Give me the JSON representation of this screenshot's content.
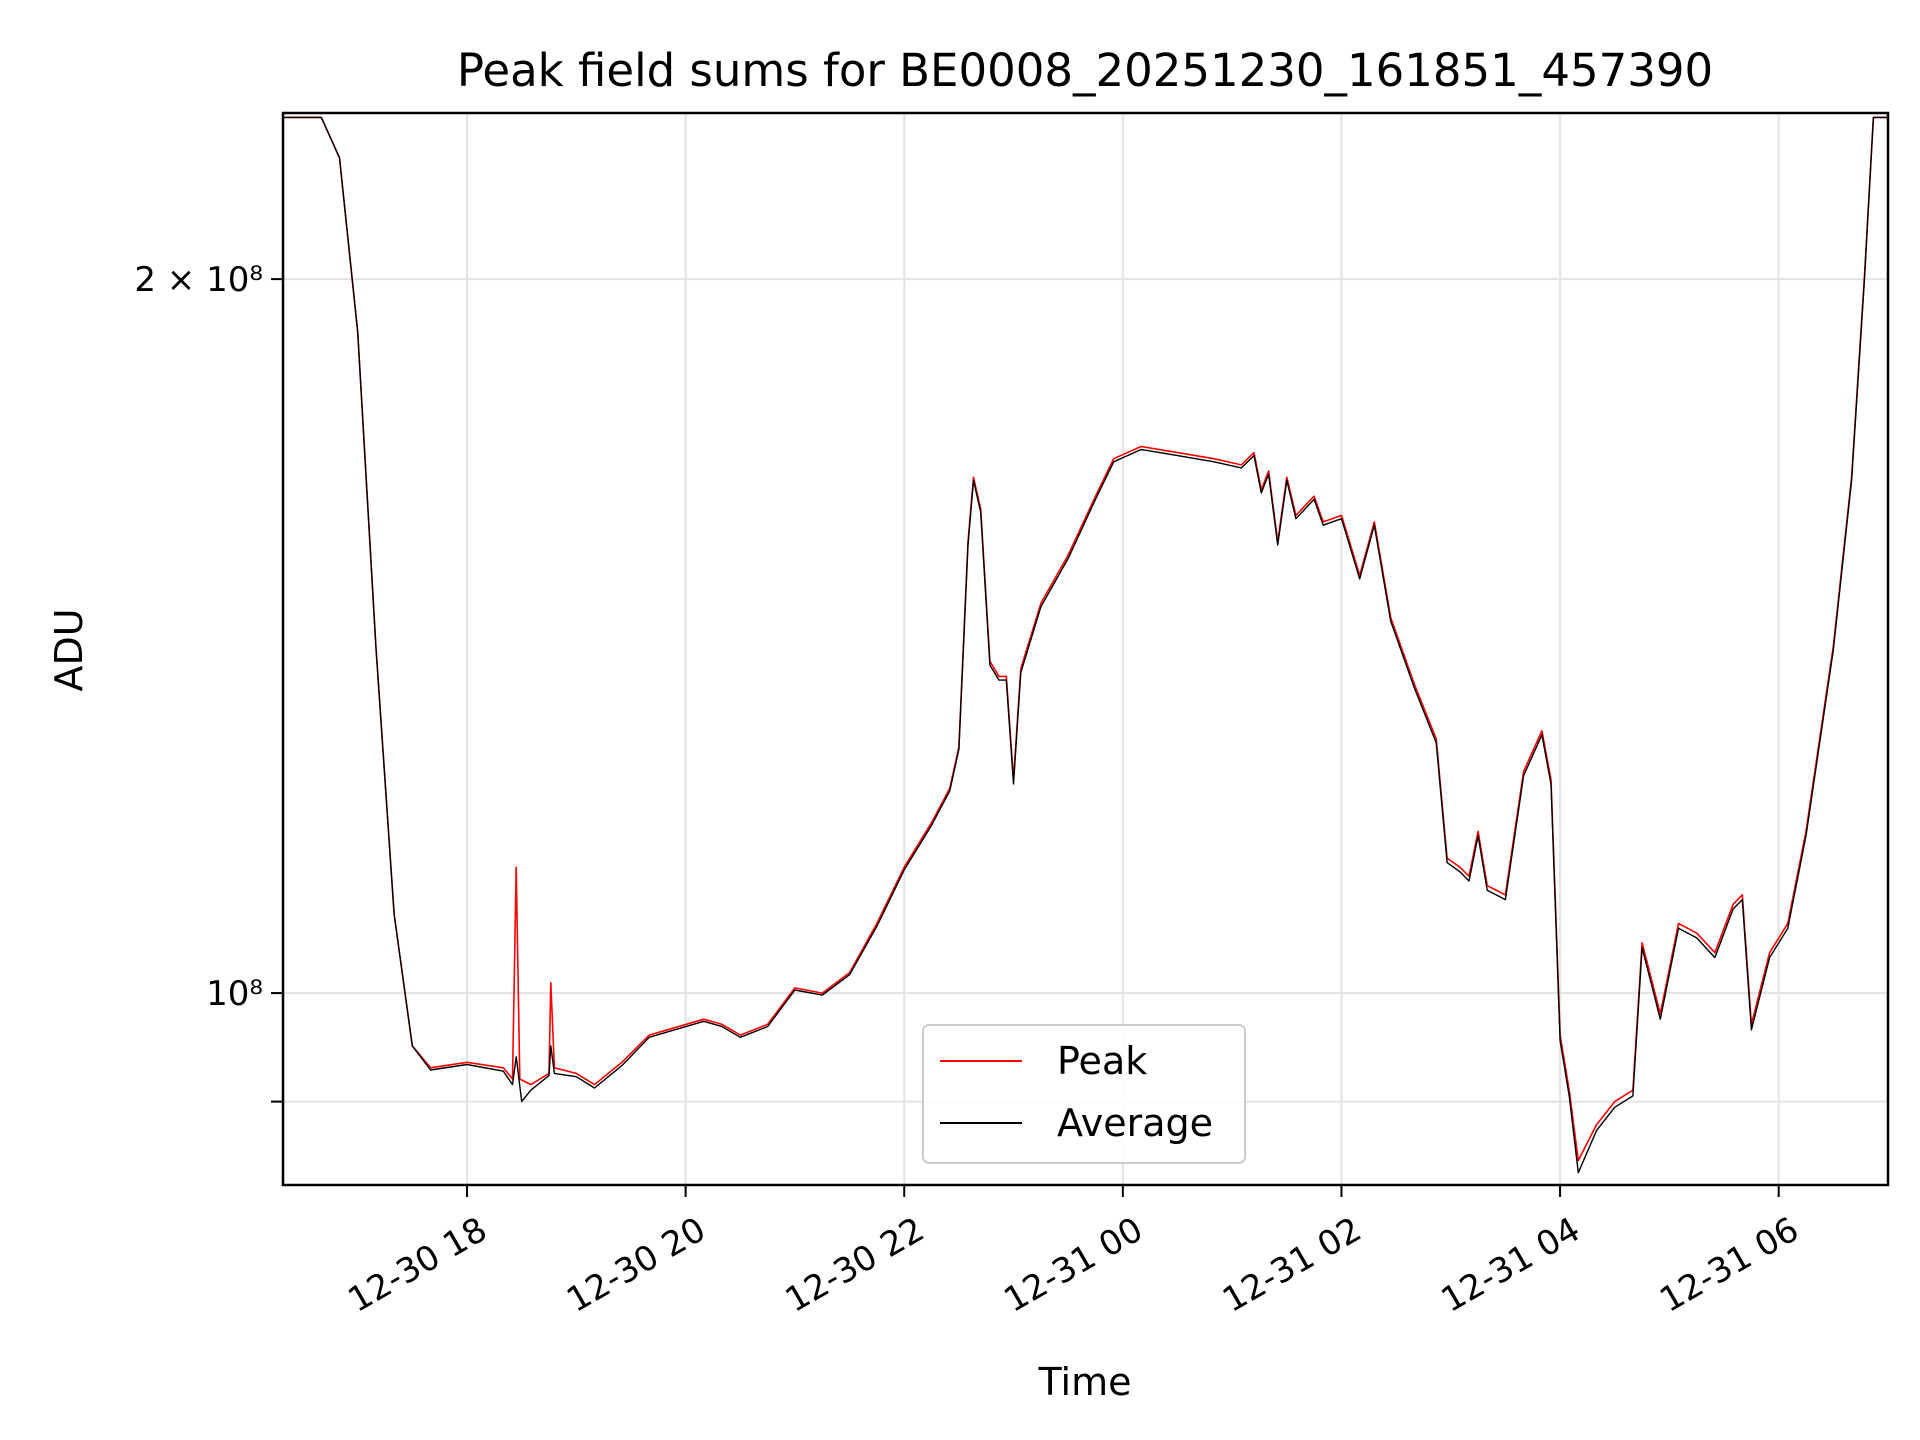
{
  "chart_data": {
    "type": "line",
    "title": "Peak field sums for BE0008_20251230_161851_457390",
    "xlabel": "Time",
    "ylabel": "ADU",
    "yscale": "log",
    "grid": true,
    "legend_placement": "lower center",
    "xlim": [
      "2025-12-30 16:19",
      "2025-12-31 07:00"
    ],
    "ylim": [
      83000000,
      235000000
    ],
    "x_ticks": [
      {
        "value": "2025-12-30 18:00",
        "label": "12-30 18"
      },
      {
        "value": "2025-12-30 20:00",
        "label": "12-30 20"
      },
      {
        "value": "2025-12-30 22:00",
        "label": "12-30 22"
      },
      {
        "value": "2025-12-31 00:00",
        "label": "12-31 00"
      },
      {
        "value": "2025-12-31 02:00",
        "label": "12-31 02"
      },
      {
        "value": "2025-12-31 04:00",
        "label": "12-31 04"
      },
      {
        "value": "2025-12-31 06:00",
        "label": "12-31 06"
      }
    ],
    "y_ticks": [
      {
        "value": 200000000,
        "label": "2 × 10⁸"
      },
      {
        "value": 100000000,
        "label": "10⁸"
      },
      {
        "value": 90000000,
        "label": ""
      }
    ],
    "series": [
      {
        "name": "Peak",
        "color": "#ff0000",
        "points": [
          [
            "2025-12-30 16:19",
            234000000
          ],
          [
            "2025-12-30 16:40",
            234000000
          ],
          [
            "2025-12-30 16:50",
            225000000
          ],
          [
            "2025-12-30 17:00",
            190000000
          ],
          [
            "2025-12-30 17:10",
            140000000
          ],
          [
            "2025-12-30 17:20",
            108000000
          ],
          [
            "2025-12-30 17:30",
            95000000
          ],
          [
            "2025-12-30 17:40",
            93000000
          ],
          [
            "2025-12-30 18:00",
            93500000
          ],
          [
            "2025-12-30 18:20",
            93000000
          ],
          [
            "2025-12-30 18:25",
            92000000
          ],
          [
            "2025-12-30 18:27",
            113000000
          ],
          [
            "2025-12-30 18:29",
            92000000
          ],
          [
            "2025-12-30 18:35",
            91500000
          ],
          [
            "2025-12-30 18:45",
            92500000
          ],
          [
            "2025-12-30 18:46",
            101000000
          ],
          [
            "2025-12-30 18:48",
            93000000
          ],
          [
            "2025-12-30 19:00",
            92500000
          ],
          [
            "2025-12-30 19:10",
            91500000
          ],
          [
            "2025-12-30 19:25",
            93500000
          ],
          [
            "2025-12-30 19:40",
            96000000
          ],
          [
            "2025-12-30 19:50",
            96500000
          ],
          [
            "2025-12-30 20:10",
            97500000
          ],
          [
            "2025-12-30 20:20",
            97000000
          ],
          [
            "2025-12-30 20:30",
            96000000
          ],
          [
            "2025-12-30 20:45",
            97000000
          ],
          [
            "2025-12-30 21:00",
            100500000
          ],
          [
            "2025-12-30 21:15",
            100000000
          ],
          [
            "2025-12-30 21:30",
            102000000
          ],
          [
            "2025-12-30 21:45",
            107000000
          ],
          [
            "2025-12-30 22:00",
            113000000
          ],
          [
            "2025-12-30 22:15",
            118000000
          ],
          [
            "2025-12-30 22:25",
            122000000
          ],
          [
            "2025-12-30 22:30",
            127000000
          ],
          [
            "2025-12-30 22:35",
            155000000
          ],
          [
            "2025-12-30 22:38",
            165000000
          ],
          [
            "2025-12-30 22:42",
            160000000
          ],
          [
            "2025-12-30 22:47",
            138000000
          ],
          [
            "2025-12-30 22:52",
            136000000
          ],
          [
            "2025-12-30 22:56",
            136000000
          ],
          [
            "2025-12-30 23:00",
            123000000
          ],
          [
            "2025-12-30 23:04",
            137000000
          ],
          [
            "2025-12-30 23:15",
            146000000
          ],
          [
            "2025-12-30 23:30",
            153000000
          ],
          [
            "2025-12-30 23:45",
            162000000
          ],
          [
            "2025-12-30 23:55",
            168000000
          ],
          [
            "2025-12-31 00:10",
            170000000
          ],
          [
            "2025-12-31 00:30",
            169000000
          ],
          [
            "2025-12-31 00:50",
            168000000
          ],
          [
            "2025-12-31 01:05",
            167000000
          ],
          [
            "2025-12-31 01:12",
            169000000
          ],
          [
            "2025-12-31 01:16",
            163000000
          ],
          [
            "2025-12-31 01:20",
            166000000
          ],
          [
            "2025-12-31 01:25",
            155000000
          ],
          [
            "2025-12-31 01:30",
            165000000
          ],
          [
            "2025-12-31 01:35",
            159000000
          ],
          [
            "2025-12-31 01:45",
            162000000
          ],
          [
            "2025-12-31 01:50",
            158000000
          ],
          [
            "2025-12-31 02:00",
            159000000
          ],
          [
            "2025-12-31 02:10",
            150000000
          ],
          [
            "2025-12-31 02:18",
            158000000
          ],
          [
            "2025-12-31 02:27",
            144000000
          ],
          [
            "2025-12-31 02:40",
            135000000
          ],
          [
            "2025-12-31 02:52",
            128000000
          ],
          [
            "2025-12-31 02:58",
            114000000
          ],
          [
            "2025-12-31 03:05",
            113000000
          ],
          [
            "2025-12-31 03:10",
            112000000
          ],
          [
            "2025-12-31 03:15",
            117000000
          ],
          [
            "2025-12-31 03:20",
            111000000
          ],
          [
            "2025-12-31 03:30",
            110000000
          ],
          [
            "2025-12-31 03:40",
            124000000
          ],
          [
            "2025-12-31 03:50",
            129000000
          ],
          [
            "2025-12-31 03:55",
            123000000
          ],
          [
            "2025-12-31 04:00",
            96000000
          ],
          [
            "2025-12-31 04:05",
            91000000
          ],
          [
            "2025-12-31 04:10",
            85000000
          ],
          [
            "2025-12-31 04:20",
            88000000
          ],
          [
            "2025-12-31 04:30",
            90000000
          ],
          [
            "2025-12-31 04:40",
            91000000
          ],
          [
            "2025-12-31 04:45",
            105000000
          ],
          [
            "2025-12-31 04:55",
            98000000
          ],
          [
            "2025-12-31 05:05",
            107000000
          ],
          [
            "2025-12-31 05:15",
            106000000
          ],
          [
            "2025-12-31 05:25",
            104000000
          ],
          [
            "2025-12-31 05:35",
            109000000
          ],
          [
            "2025-12-31 05:40",
            110000000
          ],
          [
            "2025-12-31 05:45",
            97000000
          ],
          [
            "2025-12-31 05:55",
            104000000
          ],
          [
            "2025-12-31 06:05",
            107000000
          ],
          [
            "2025-12-31 06:15",
            117000000
          ],
          [
            "2025-12-31 06:30",
            140000000
          ],
          [
            "2025-12-31 06:40",
            165000000
          ],
          [
            "2025-12-31 06:47",
            200000000
          ],
          [
            "2025-12-31 06:52",
            234000000
          ],
          [
            "2025-12-31 07:00",
            234000000
          ]
        ]
      },
      {
        "name": "Average",
        "color": "#000000",
        "points": [
          [
            "2025-12-30 16:19",
            234000000
          ],
          [
            "2025-12-30 16:40",
            234000000
          ],
          [
            "2025-12-30 16:50",
            225000000
          ],
          [
            "2025-12-30 17:00",
            190000000
          ],
          [
            "2025-12-30 17:10",
            140000000
          ],
          [
            "2025-12-30 17:20",
            108000000
          ],
          [
            "2025-12-30 17:30",
            95000000
          ],
          [
            "2025-12-30 17:40",
            92800000
          ],
          [
            "2025-12-30 18:00",
            93300000
          ],
          [
            "2025-12-30 18:20",
            92700000
          ],
          [
            "2025-12-30 18:25",
            91500000
          ],
          [
            "2025-12-30 18:27",
            94000000
          ],
          [
            "2025-12-30 18:30",
            90000000
          ],
          [
            "2025-12-30 18:35",
            91000000
          ],
          [
            "2025-12-30 18:45",
            92300000
          ],
          [
            "2025-12-30 18:46",
            95000000
          ],
          [
            "2025-12-30 18:48",
            92500000
          ],
          [
            "2025-12-30 19:00",
            92200000
          ],
          [
            "2025-12-30 19:10",
            91200000
          ],
          [
            "2025-12-30 19:25",
            93200000
          ],
          [
            "2025-12-30 19:40",
            95800000
          ],
          [
            "2025-12-30 19:50",
            96300000
          ],
          [
            "2025-12-30 20:10",
            97300000
          ],
          [
            "2025-12-30 20:20",
            96800000
          ],
          [
            "2025-12-30 20:30",
            95800000
          ],
          [
            "2025-12-30 20:45",
            96800000
          ],
          [
            "2025-12-30 21:00",
            100300000
          ],
          [
            "2025-12-30 21:15",
            99800000
          ],
          [
            "2025-12-30 21:30",
            101800000
          ],
          [
            "2025-12-30 21:45",
            106700000
          ],
          [
            "2025-12-30 22:00",
            112700000
          ],
          [
            "2025-12-30 22:15",
            117700000
          ],
          [
            "2025-12-30 22:25",
            121700000
          ],
          [
            "2025-12-30 22:30",
            126700000
          ],
          [
            "2025-12-30 22:35",
            154500000
          ],
          [
            "2025-12-30 22:38",
            164500000
          ],
          [
            "2025-12-30 22:42",
            159500000
          ],
          [
            "2025-12-30 22:47",
            137500000
          ],
          [
            "2025-12-30 22:52",
            135500000
          ],
          [
            "2025-12-30 22:56",
            135500000
          ],
          [
            "2025-12-30 23:00",
            122500000
          ],
          [
            "2025-12-30 23:04",
            136500000
          ],
          [
            "2025-12-30 23:15",
            145500000
          ],
          [
            "2025-12-30 23:30",
            152500000
          ],
          [
            "2025-12-30 23:45",
            161500000
          ],
          [
            "2025-12-30 23:55",
            167500000
          ],
          [
            "2025-12-31 00:10",
            169500000
          ],
          [
            "2025-12-31 00:30",
            168500000
          ],
          [
            "2025-12-31 00:50",
            167500000
          ],
          [
            "2025-12-31 01:05",
            166500000
          ],
          [
            "2025-12-31 01:12",
            168500000
          ],
          [
            "2025-12-31 01:16",
            162500000
          ],
          [
            "2025-12-31 01:20",
            165500000
          ],
          [
            "2025-12-31 01:25",
            154500000
          ],
          [
            "2025-12-31 01:30",
            164500000
          ],
          [
            "2025-12-31 01:35",
            158500000
          ],
          [
            "2025-12-31 01:45",
            161500000
          ],
          [
            "2025-12-31 01:50",
            157500000
          ],
          [
            "2025-12-31 02:00",
            158500000
          ],
          [
            "2025-12-31 02:10",
            149500000
          ],
          [
            "2025-12-31 02:18",
            157500000
          ],
          [
            "2025-12-31 02:27",
            143500000
          ],
          [
            "2025-12-31 02:40",
            134500000
          ],
          [
            "2025-12-31 02:52",
            127500000
          ],
          [
            "2025-12-31 02:58",
            113500000
          ],
          [
            "2025-12-31 03:05",
            112500000
          ],
          [
            "2025-12-31 03:10",
            111500000
          ],
          [
            "2025-12-31 03:15",
            116500000
          ],
          [
            "2025-12-31 03:20",
            110500000
          ],
          [
            "2025-12-31 03:30",
            109500000
          ],
          [
            "2025-12-31 03:40",
            123500000
          ],
          [
            "2025-12-31 03:50",
            128500000
          ],
          [
            "2025-12-31 03:55",
            122500000
          ],
          [
            "2025-12-31 04:00",
            95500000
          ],
          [
            "2025-12-31 04:05",
            90500000
          ],
          [
            "2025-12-31 04:10",
            84000000
          ],
          [
            "2025-12-31 04:20",
            87500000
          ],
          [
            "2025-12-31 04:30",
            89500000
          ],
          [
            "2025-12-31 04:40",
            90500000
          ],
          [
            "2025-12-31 04:45",
            104500000
          ],
          [
            "2025-12-31 04:55",
            97500000
          ],
          [
            "2025-12-31 05:05",
            106500000
          ],
          [
            "2025-12-31 05:15",
            105500000
          ],
          [
            "2025-12-31 05:25",
            103500000
          ],
          [
            "2025-12-31 05:35",
            108500000
          ],
          [
            "2025-12-31 05:40",
            109500000
          ],
          [
            "2025-12-31 05:45",
            96500000
          ],
          [
            "2025-12-31 05:55",
            103500000
          ],
          [
            "2025-12-31 06:05",
            106500000
          ],
          [
            "2025-12-31 06:15",
            116500000
          ],
          [
            "2025-12-31 06:30",
            139500000
          ],
          [
            "2025-12-31 06:40",
            164500000
          ],
          [
            "2025-12-31 06:47",
            199500000
          ],
          [
            "2025-12-31 06:52",
            234000000
          ],
          [
            "2025-12-31 07:00",
            234000000
          ]
        ]
      }
    ]
  }
}
